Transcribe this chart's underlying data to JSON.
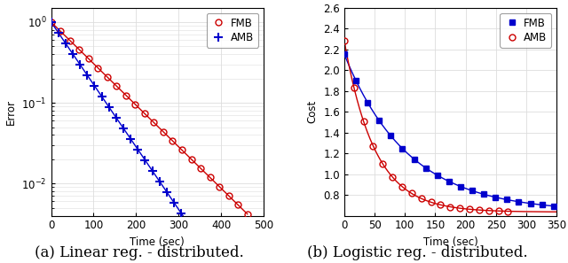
{
  "left_plot": {
    "xlabel": "Time (sec)",
    "ylabel": "Error",
    "xlim": [
      0,
      500
    ],
    "xticks": [
      0,
      100,
      200,
      300,
      400,
      500
    ],
    "yticks": [
      0.01,
      0.1,
      1.0
    ],
    "fmb_color": "#CC0000",
    "amb_color": "#0000CC",
    "fmb_n_points": 22,
    "fmb_t_max": 462,
    "fmb_decay": 0.01185,
    "amb_n_points": 21,
    "amb_t_max": 340,
    "amb_decay": 0.0178,
    "caption": "(a) Linear reg. - distributed."
  },
  "right_plot": {
    "xlabel": "Time (sec)",
    "ylabel": "Cost",
    "xlim": [
      0,
      350
    ],
    "ylim": [
      0.6,
      2.6
    ],
    "yticks": [
      0.8,
      1.0,
      1.2,
      1.4,
      1.6,
      1.8,
      2.0,
      2.2,
      2.4,
      2.6
    ],
    "xticks": [
      0,
      50,
      100,
      150,
      200,
      250,
      300,
      350
    ],
    "fmb_color": "#0000CC",
    "amb_color": "#CC0000",
    "fmb_y0": 1.52,
    "fmb_decay": 0.0095,
    "fmb_asymptote": 0.635,
    "fmb_t_max": 345,
    "fmb_n_points": 19,
    "amb_y0": 1.65,
    "amb_decay": 0.02,
    "amb_asymptote": 0.635,
    "amb_t_max": 270,
    "amb_n_points": 18,
    "caption": "(b) Logistic reg. - distributed."
  },
  "fig_background": "#FFFFFF",
  "grid_color": "#DDDDDD",
  "font_size": 8.5,
  "caption_font_size": 12,
  "line_width": 1.0,
  "marker_size_circle": 5,
  "marker_size_cross": 7
}
